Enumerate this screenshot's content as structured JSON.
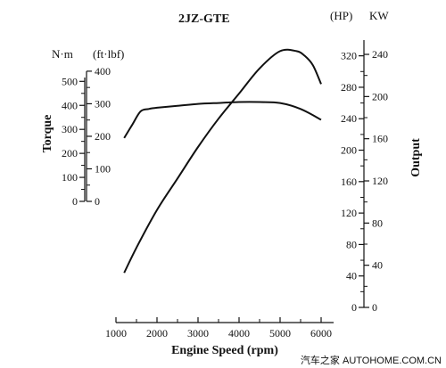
{
  "chart_data": {
    "type": "line",
    "title": "2JZ-GTE",
    "xlabel": "Engine Speed (rpm)",
    "x_ticks": [
      1000,
      2000,
      3000,
      4000,
      5000,
      6000
    ],
    "xlim": [
      1000,
      6000
    ],
    "left_axis": {
      "label": "Torque",
      "nm_unit": "N·m",
      "nm_ticks": [
        0,
        100,
        200,
        300,
        400,
        500
      ],
      "ftlbf_unit": "(ft·lbf)",
      "ftlbf_ticks": [
        0,
        100,
        200,
        300,
        400
      ],
      "ylim_nm": [
        0,
        542
      ]
    },
    "right_axis": {
      "label": "Output",
      "hp_unit": "(HP)",
      "hp_ticks": [
        0,
        40,
        80,
        120,
        160,
        200,
        240,
        280,
        320
      ],
      "kw_unit": "KW",
      "kw_ticks": [
        0,
        40,
        80,
        120,
        160,
        200,
        240
      ],
      "ylim_hp": [
        0,
        340
      ]
    },
    "series": [
      {
        "unit": "N·m",
        "x": [
          1200,
          1400,
          1600,
          1800,
          2000,
          2500,
          3000,
          3500,
          4000,
          4500,
          5000,
          5500,
          6000
        ],
        "values": [
          264,
          320,
          375,
          385,
          390,
          398,
          406,
          410,
          414,
          414,
          410,
          385,
          340
        ]
      },
      {
        "unit": "HP",
        "x": [
          1200,
          1500,
          2000,
          2500,
          3000,
          3500,
          4000,
          4500,
          5000,
          5400,
          5600,
          5800,
          6000
        ],
        "values": [
          44,
          76,
          124,
          164,
          204,
          240,
          272,
          304,
          326,
          326,
          320,
          308,
          284
        ]
      }
    ],
    "grid": false,
    "legend": "none"
  },
  "watermark": "汽车之家  AUTOHOME.COM.CN"
}
